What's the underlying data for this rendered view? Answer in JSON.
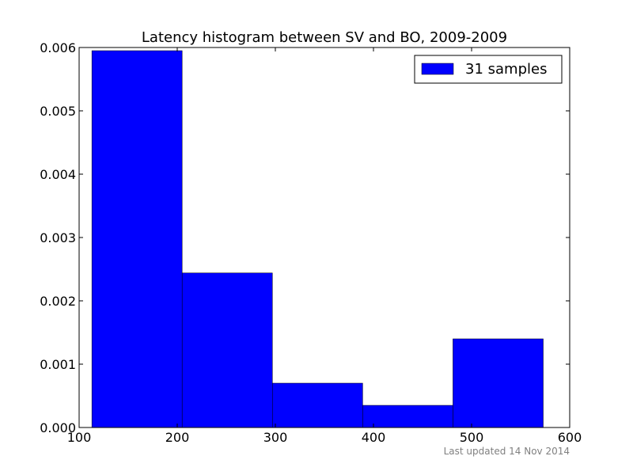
{
  "chart_data": {
    "type": "bar",
    "title": "Latency histogram between SV and BO, 2009-2009",
    "xlabel": "",
    "ylabel": "",
    "xlim": [
      100,
      600
    ],
    "ylim": [
      0,
      0.006
    ],
    "x_ticks": [
      100,
      200,
      300,
      400,
      500,
      600
    ],
    "x_tick_labels": [
      "100",
      "200",
      "300",
      "400",
      "500",
      "600"
    ],
    "y_ticks": [
      0,
      0.001,
      0.002,
      0.003,
      0.004,
      0.005,
      0.006
    ],
    "y_tick_labels": [
      "0.000",
      "0.001",
      "0.002",
      "0.003",
      "0.004",
      "0.005",
      "0.006"
    ],
    "bins": [
      {
        "start": 113,
        "end": 205,
        "value": 0.00595
      },
      {
        "start": 205,
        "end": 297,
        "value": 0.00244
      },
      {
        "start": 297,
        "end": 389,
        "value": 0.0007
      },
      {
        "start": 389,
        "end": 481,
        "value": 0.00035
      },
      {
        "start": 481,
        "end": 573,
        "value": 0.0014
      }
    ],
    "series": [
      {
        "name": "31 samples",
        "color": "#0000ff"
      }
    ],
    "legend_position": "top-right",
    "grid": false
  },
  "footer": {
    "text": "Last updated 14 Nov 2014"
  }
}
